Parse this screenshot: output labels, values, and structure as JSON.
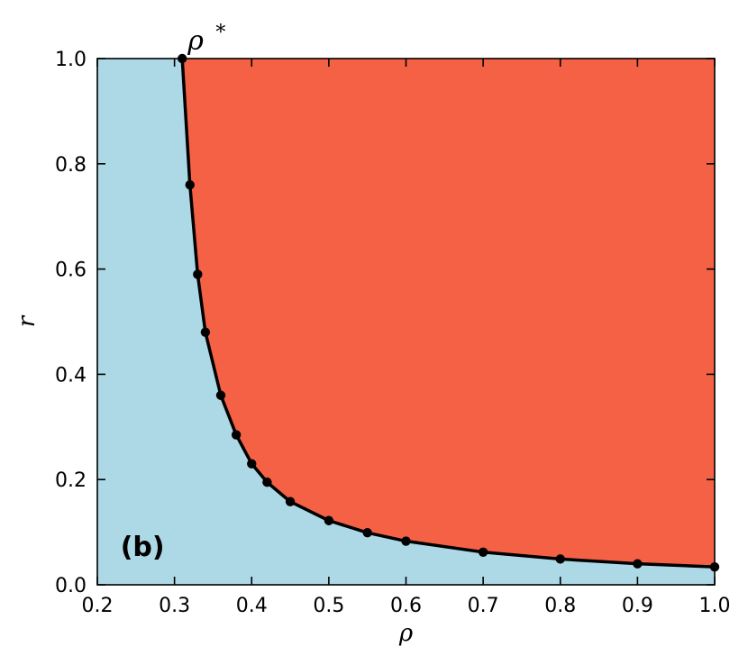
{
  "chart_data": {
    "type": "line",
    "title": "",
    "xlabel": "ρ",
    "ylabel": "r",
    "xlim": [
      0.2,
      1.0
    ],
    "ylim": [
      0.0,
      1.0
    ],
    "xticks": [
      "0.2",
      "0.3",
      "0.4",
      "0.5",
      "0.6",
      "0.7",
      "0.8",
      "0.9",
      "1.0"
    ],
    "yticks": [
      "0.0",
      "0.2",
      "0.4",
      "0.6",
      "0.8",
      "1.0"
    ],
    "grid": false,
    "legend": "none",
    "panel_label": "(b)",
    "annotation": {
      "base": "ρ",
      "sup": "*",
      "x": 0.31,
      "y": 1.0
    },
    "regions": {
      "below_curve_color": "#add8e6",
      "above_curve_color": "#f56144"
    },
    "series": [
      {
        "color": "#000000",
        "marker": "circle",
        "x": [
          0.31,
          0.32,
          0.33,
          0.34,
          0.36,
          0.38,
          0.4,
          0.42,
          0.45,
          0.5,
          0.55,
          0.6,
          0.7,
          0.8,
          0.9,
          1.0
        ],
        "y": [
          1.0,
          0.76,
          0.59,
          0.48,
          0.36,
          0.285,
          0.23,
          0.195,
          0.158,
          0.122,
          0.099,
          0.083,
          0.062,
          0.049,
          0.04,
          0.034
        ]
      }
    ]
  }
}
